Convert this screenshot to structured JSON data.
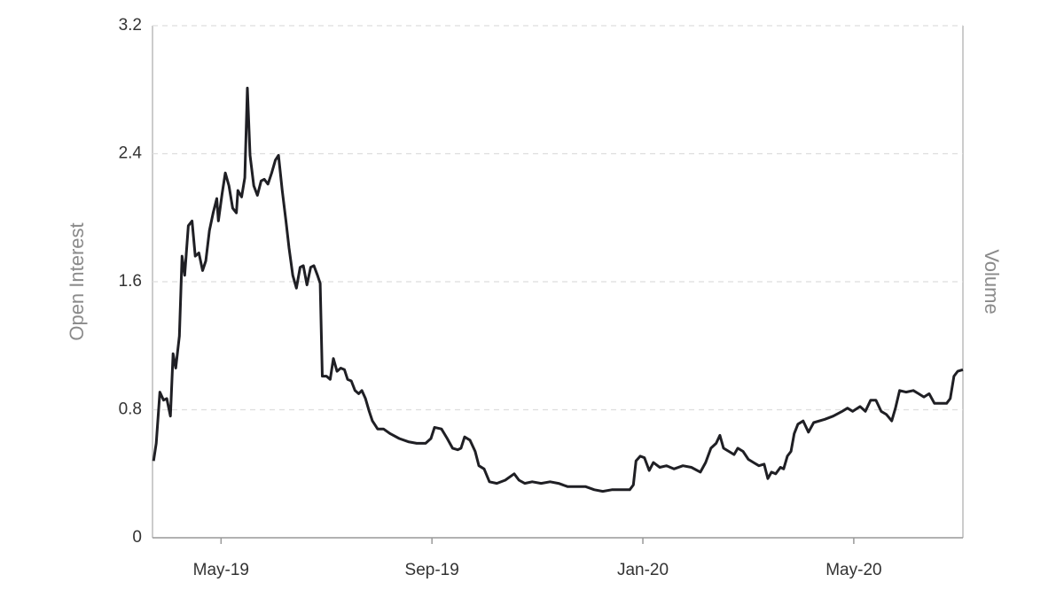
{
  "chart_data": {
    "type": "line",
    "y_label": "Open Interest",
    "y2_label": "Volume",
    "color": "#1f1f24",
    "grid": true,
    "xlim": [
      3.7,
      19.07
    ],
    "xticks": [
      {
        "value": 5,
        "label": "May-19"
      },
      {
        "value": 9,
        "label": "Sep-19"
      },
      {
        "value": 13,
        "label": "Jan-20"
      },
      {
        "value": 17,
        "label": "May-20"
      }
    ],
    "ylim": [
      0,
      3.2
    ],
    "yticks": [
      0,
      0.8,
      1.6,
      2.4,
      3.2
    ],
    "x": [
      3.72,
      3.77,
      3.84,
      3.91,
      3.97,
      4.04,
      4.09,
      4.14,
      4.21,
      4.26,
      4.31,
      4.38,
      4.45,
      4.51,
      4.58,
      4.65,
      4.71,
      4.78,
      4.85,
      4.92,
      4.95,
      5.02,
      5.08,
      5.15,
      5.22,
      5.29,
      5.32,
      5.39,
      5.45,
      5.5,
      5.55,
      5.62,
      5.69,
      5.76,
      5.82,
      5.89,
      5.96,
      6.03,
      6.09,
      6.16,
      6.23,
      6.29,
      6.36,
      6.43,
      6.5,
      6.56,
      6.63,
      6.7,
      6.76,
      6.83,
      6.88,
      6.92,
      7.0,
      7.07,
      7.13,
      7.2,
      7.27,
      7.34,
      7.4,
      7.47,
      7.54,
      7.61,
      7.67,
      7.74,
      7.81,
      7.87,
      7.97,
      8.08,
      8.21,
      8.38,
      8.55,
      8.71,
      8.88,
      8.98,
      9.05,
      9.18,
      9.29,
      9.39,
      9.49,
      9.55,
      9.62,
      9.72,
      9.82,
      9.89,
      9.99,
      10.09,
      10.23,
      10.39,
      10.56,
      10.65,
      10.76,
      10.9,
      11.07,
      11.24,
      11.4,
      11.57,
      11.74,
      11.91,
      12.08,
      12.24,
      12.41,
      12.58,
      12.75,
      12.82,
      12.87,
      12.95,
      13.03,
      13.12,
      13.2,
      13.32,
      13.45,
      13.59,
      13.76,
      13.92,
      14.09,
      14.19,
      14.29,
      14.39,
      14.46,
      14.53,
      14.63,
      14.73,
      14.8,
      14.9,
      15.0,
      15.1,
      15.2,
      15.3,
      15.37,
      15.44,
      15.52,
      15.61,
      15.67,
      15.74,
      15.81,
      15.87,
      15.94,
      16.04,
      16.14,
      16.24,
      16.45,
      16.61,
      16.78,
      16.88,
      16.98,
      17.12,
      17.22,
      17.32,
      17.42,
      17.52,
      17.62,
      17.72,
      17.79,
      17.87,
      17.99,
      18.13,
      18.23,
      18.33,
      18.43,
      18.53,
      18.63,
      18.76,
      18.83,
      18.9,
      18.97,
      19.07
    ],
    "values": [
      0.48,
      0.59,
      0.91,
      0.86,
      0.87,
      0.76,
      1.15,
      1.06,
      1.26,
      1.76,
      1.64,
      1.95,
      1.98,
      1.76,
      1.78,
      1.67,
      1.73,
      1.92,
      2.03,
      2.12,
      1.98,
      2.15,
      2.28,
      2.2,
      2.06,
      2.03,
      2.17,
      2.13,
      2.25,
      2.81,
      2.39,
      2.2,
      2.14,
      2.23,
      2.24,
      2.21,
      2.28,
      2.36,
      2.39,
      2.17,
      1.98,
      1.81,
      1.64,
      1.56,
      1.69,
      1.7,
      1.58,
      1.69,
      1.7,
      1.64,
      1.59,
      1.01,
      1.01,
      0.99,
      1.12,
      1.04,
      1.06,
      1.05,
      0.99,
      0.98,
      0.92,
      0.9,
      0.92,
      0.87,
      0.79,
      0.73,
      0.68,
      0.68,
      0.65,
      0.62,
      0.6,
      0.59,
      0.59,
      0.62,
      0.69,
      0.68,
      0.62,
      0.56,
      0.55,
      0.56,
      0.63,
      0.61,
      0.54,
      0.45,
      0.43,
      0.35,
      0.34,
      0.36,
      0.4,
      0.36,
      0.34,
      0.35,
      0.34,
      0.35,
      0.34,
      0.32,
      0.32,
      0.32,
      0.3,
      0.29,
      0.3,
      0.3,
      0.3,
      0.33,
      0.48,
      0.51,
      0.5,
      0.42,
      0.47,
      0.44,
      0.45,
      0.43,
      0.45,
      0.44,
      0.41,
      0.47,
      0.56,
      0.59,
      0.64,
      0.56,
      0.54,
      0.52,
      0.56,
      0.54,
      0.49,
      0.47,
      0.45,
      0.46,
      0.37,
      0.41,
      0.4,
      0.44,
      0.43,
      0.51,
      0.54,
      0.65,
      0.71,
      0.73,
      0.66,
      0.72,
      0.74,
      0.76,
      0.79,
      0.81,
      0.79,
      0.82,
      0.79,
      0.86,
      0.86,
      0.79,
      0.77,
      0.73,
      0.81,
      0.92,
      0.91,
      0.92,
      0.9,
      0.88,
      0.9,
      0.84,
      0.84,
      0.84,
      0.87,
      1.01,
      1.04,
      1.05
    ]
  }
}
